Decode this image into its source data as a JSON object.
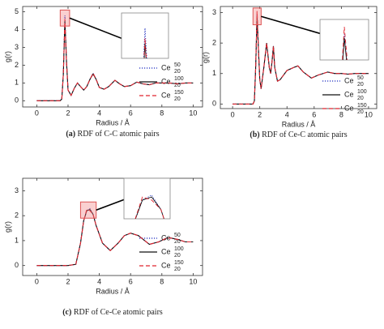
{
  "chart_data": [
    {
      "type": "line",
      "label": "(a)",
      "caption": "RDF of C-C atomic pairs",
      "xlabel": "Radius / Å",
      "ylabel": "g(r)",
      "x": [
        0,
        1,
        1.5,
        1.6,
        1.7,
        1.8,
        1.9,
        2.0,
        2.2,
        2.4,
        2.6,
        2.8,
        3.0,
        3.2,
        3.4,
        3.6,
        3.8,
        4.0,
        4.3,
        4.6,
        5.0,
        5.3,
        5.6,
        6.0,
        6.4,
        6.8,
        7.2,
        7.6,
        8.0,
        8.5,
        9,
        9.5,
        10
      ],
      "series": [
        {
          "name": "Ce",
          "sup": "50",
          "sub": "20",
          "color": "#1f2fc0",
          "style": "dotted",
          "values": [
            0,
            0,
            0,
            0.1,
            1.5,
            4.8,
            2.2,
            0.6,
            0.3,
            0.7,
            1.0,
            0.8,
            0.6,
            0.8,
            1.2,
            1.55,
            1.2,
            0.75,
            0.65,
            0.8,
            1.15,
            0.95,
            0.8,
            0.85,
            1.05,
            0.95,
            0.9,
            1.0,
            1.0,
            1.0,
            0.95,
            1.0,
            1.0
          ]
        },
        {
          "name": "Ce",
          "sup": "100",
          "sub": "20",
          "color": "#111111",
          "style": "solid",
          "values": [
            0,
            0,
            0,
            0.1,
            1.5,
            4.5,
            2.2,
            0.6,
            0.3,
            0.7,
            1.0,
            0.8,
            0.6,
            0.8,
            1.2,
            1.5,
            1.2,
            0.75,
            0.65,
            0.8,
            1.15,
            0.95,
            0.8,
            0.85,
            1.05,
            0.95,
            0.9,
            1.0,
            1.0,
            1.0,
            0.95,
            1.0,
            1.0
          ]
        },
        {
          "name": "Ce",
          "sup": "150",
          "sub": "20",
          "color": "#e0242e",
          "style": "dashed",
          "values": [
            0,
            0,
            0,
            0.1,
            1.5,
            4.6,
            2.2,
            0.6,
            0.3,
            0.7,
            1.0,
            0.8,
            0.6,
            0.8,
            1.2,
            1.55,
            1.2,
            0.75,
            0.65,
            0.8,
            1.15,
            0.95,
            0.8,
            0.85,
            1.05,
            0.95,
            0.9,
            1.0,
            1.0,
            1.0,
            0.95,
            1.0,
            1.0
          ]
        }
      ],
      "xlim": [
        -0.9,
        10.6
      ],
      "ylim": [
        -0.35,
        5.3
      ],
      "xticks": [
        0,
        2,
        4,
        6,
        8,
        10
      ],
      "yticks": [
        0,
        1,
        2,
        3,
        4,
        5
      ],
      "inset": {
        "xlim": [
          1.5,
          2.1
        ],
        "ylim": [
          4.2,
          5.1
        ]
      }
    },
    {
      "type": "line",
      "label": "(b)",
      "caption": "RDF of Ce-C atomic pairs",
      "xlabel": "Radius / Å",
      "ylabel": "g(r)",
      "x": [
        0,
        1,
        1.5,
        1.6,
        1.7,
        1.8,
        1.9,
        2.0,
        2.1,
        2.3,
        2.5,
        2.7,
        2.8,
        2.9,
        3.0,
        3.1,
        3.3,
        3.5,
        4.0,
        4.5,
        4.8,
        5.2,
        5.8,
        6.3,
        7,
        7.5,
        8,
        8.5,
        9,
        9.5,
        10
      ],
      "series": [
        {
          "name": "Ce",
          "sup": "50",
          "sub": "20",
          "color": "#1f2fc0",
          "style": "dotted",
          "values": [
            0,
            0,
            0,
            0.1,
            1.2,
            2.95,
            1.8,
            0.8,
            0.5,
            1.2,
            2.0,
            1.2,
            1.0,
            1.4,
            1.9,
            1.2,
            0.75,
            0.8,
            1.1,
            1.2,
            1.25,
            1.05,
            0.85,
            0.95,
            1.05,
            1.0,
            1.0,
            0.98,
            1.0,
            1.0,
            1.0
          ]
        },
        {
          "name": "Ce",
          "sup": "100",
          "sub": "20",
          "color": "#111111",
          "style": "solid",
          "values": [
            0,
            0,
            0,
            0.1,
            1.2,
            2.9,
            1.8,
            0.8,
            0.5,
            1.2,
            2.0,
            1.2,
            1.0,
            1.4,
            1.9,
            1.2,
            0.75,
            0.8,
            1.1,
            1.2,
            1.25,
            1.05,
            0.85,
            0.95,
            1.05,
            1.0,
            1.0,
            0.98,
            1.0,
            1.0,
            1.0
          ]
        },
        {
          "name": "Ce",
          "sup": "150",
          "sub": "20",
          "color": "#e0242e",
          "style": "dashed",
          "values": [
            0,
            0,
            0,
            0.1,
            1.2,
            3.05,
            1.8,
            0.8,
            0.5,
            1.2,
            2.0,
            1.2,
            1.0,
            1.4,
            1.9,
            1.2,
            0.75,
            0.8,
            1.1,
            1.2,
            1.25,
            1.05,
            0.85,
            0.95,
            1.05,
            1.0,
            1.0,
            0.98,
            1.0,
            1.0,
            1.0
          ]
        }
      ],
      "xlim": [
        -0.9,
        10.6
      ],
      "ylim": [
        -0.15,
        3.2
      ],
      "xticks": [
        0,
        2,
        4,
        6,
        8,
        10
      ],
      "yticks": [
        0,
        1,
        2,
        3
      ],
      "inset": {
        "xlim": [
          1.5,
          2.1
        ],
        "ylim": [
          2.6,
          3.15
        ]
      }
    },
    {
      "type": "line",
      "label": "(c)",
      "caption": "RDF of Ce-Ce atomic pairs",
      "xlabel": "Radius / Å",
      "ylabel": "g(r)",
      "x": [
        0,
        2,
        2.5,
        2.8,
        3.0,
        3.2,
        3.4,
        3.6,
        3.8,
        4.2,
        4.7,
        5.2,
        5.6,
        6.0,
        6.5,
        7.2,
        7.8,
        8.3,
        8.6,
        9.0,
        9.5,
        10
      ],
      "series": [
        {
          "name": "Ce",
          "sup": "50",
          "sub": "20",
          "color": "#1f2fc0",
          "style": "dotted",
          "values": [
            0,
            0,
            0.05,
            0.9,
            1.8,
            2.2,
            2.28,
            2.05,
            1.6,
            0.9,
            0.6,
            0.9,
            1.2,
            1.3,
            1.2,
            0.85,
            0.95,
            1.1,
            1.1,
            1.05,
            0.95,
            0.95
          ]
        },
        {
          "name": "Ce",
          "sup": "100",
          "sub": "20",
          "color": "#111111",
          "style": "solid",
          "values": [
            0,
            0,
            0.05,
            0.9,
            1.8,
            2.2,
            2.25,
            2.05,
            1.6,
            0.9,
            0.6,
            0.9,
            1.2,
            1.3,
            1.2,
            0.85,
            0.95,
            1.1,
            1.1,
            1.05,
            0.95,
            0.95
          ]
        },
        {
          "name": "Ce",
          "sup": "150",
          "sub": "20",
          "color": "#e0242e",
          "style": "dashed",
          "values": [
            0,
            0,
            0.05,
            0.9,
            1.8,
            2.25,
            2.2,
            2.05,
            1.6,
            0.9,
            0.6,
            0.9,
            1.2,
            1.3,
            1.2,
            0.85,
            0.95,
            1.1,
            1.1,
            1.05,
            0.95,
            0.95
          ]
        }
      ],
      "xlim": [
        -0.9,
        10.6
      ],
      "ylim": [
        -0.4,
        3.5
      ],
      "xticks": [
        0,
        2,
        4,
        6,
        8,
        10
      ],
      "yticks": [
        0,
        1,
        2,
        3
      ],
      "inset": {
        "xlim": [
          2.8,
          3.8
        ],
        "ylim": [
          1.9,
          2.55
        ]
      }
    }
  ]
}
